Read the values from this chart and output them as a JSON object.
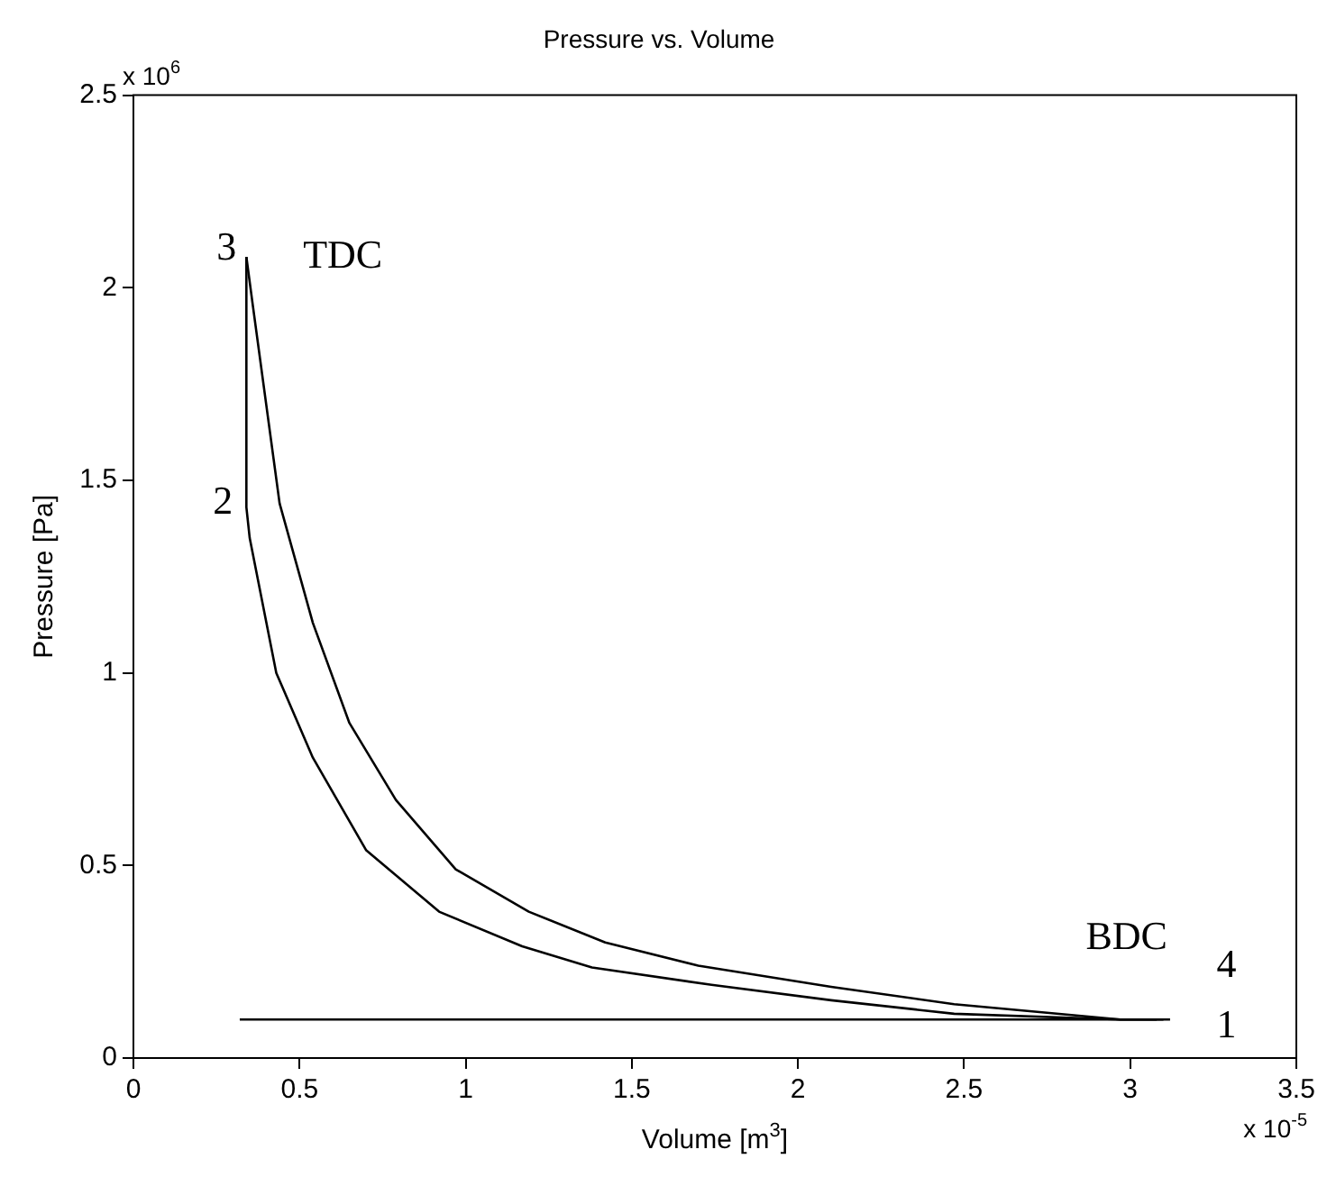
{
  "chart_data": {
    "type": "line",
    "title": "Pressure vs. Volume",
    "xlabel": "Volume [m$^{3}$]",
    "ylabel": "Pressure [Pa]",
    "series": [
      {
        "color": "#000000",
        "x": [
          3.1,
          2.97,
          2.47,
          2.1,
          1.74,
          1.38,
          1.17,
          0.92,
          0.7,
          0.54,
          0.43,
          0.35,
          0.34,
          0.34
        ],
        "values": [
          0.1,
          0.1,
          0.115,
          0.15,
          0.19,
          0.235,
          0.29,
          0.38,
          0.54,
          0.78,
          1.0,
          1.35,
          1.43,
          2.08
        ]
      },
      {
        "color": "#000000",
        "x": [
          0.34,
          0.36,
          0.44,
          0.54,
          0.65,
          0.79,
          0.97,
          1.19,
          1.42,
          1.7,
          2.1,
          2.47,
          2.97,
          3.08
        ],
        "values": [
          2.08,
          1.95,
          1.44,
          1.13,
          0.87,
          0.67,
          0.49,
          0.38,
          0.3,
          0.24,
          0.185,
          0.14,
          0.1,
          0.1
        ]
      },
      {
        "color": "#000000",
        "x": [
          0.32,
          3.12
        ],
        "values": [
          0.1,
          0.1
        ]
      }
    ],
    "xlim": [
      0,
      3.5
    ],
    "xticks": [
      0,
      0.5,
      1,
      1.5,
      2,
      2.5,
      3,
      3.5
    ],
    "ylim": [
      0,
      2.5
    ],
    "yticks": [
      0,
      0.5,
      1,
      1.5,
      2,
      2.5
    ],
    "grid": false,
    "legend": false,
    "marker": "none",
    "line_style": "solid",
    "annotations": [
      "x 10$^{6}$",
      "x 10$^{-5}$",
      "3",
      "2",
      "TDC",
      "BDC",
      "4",
      "1"
    ]
  }
}
